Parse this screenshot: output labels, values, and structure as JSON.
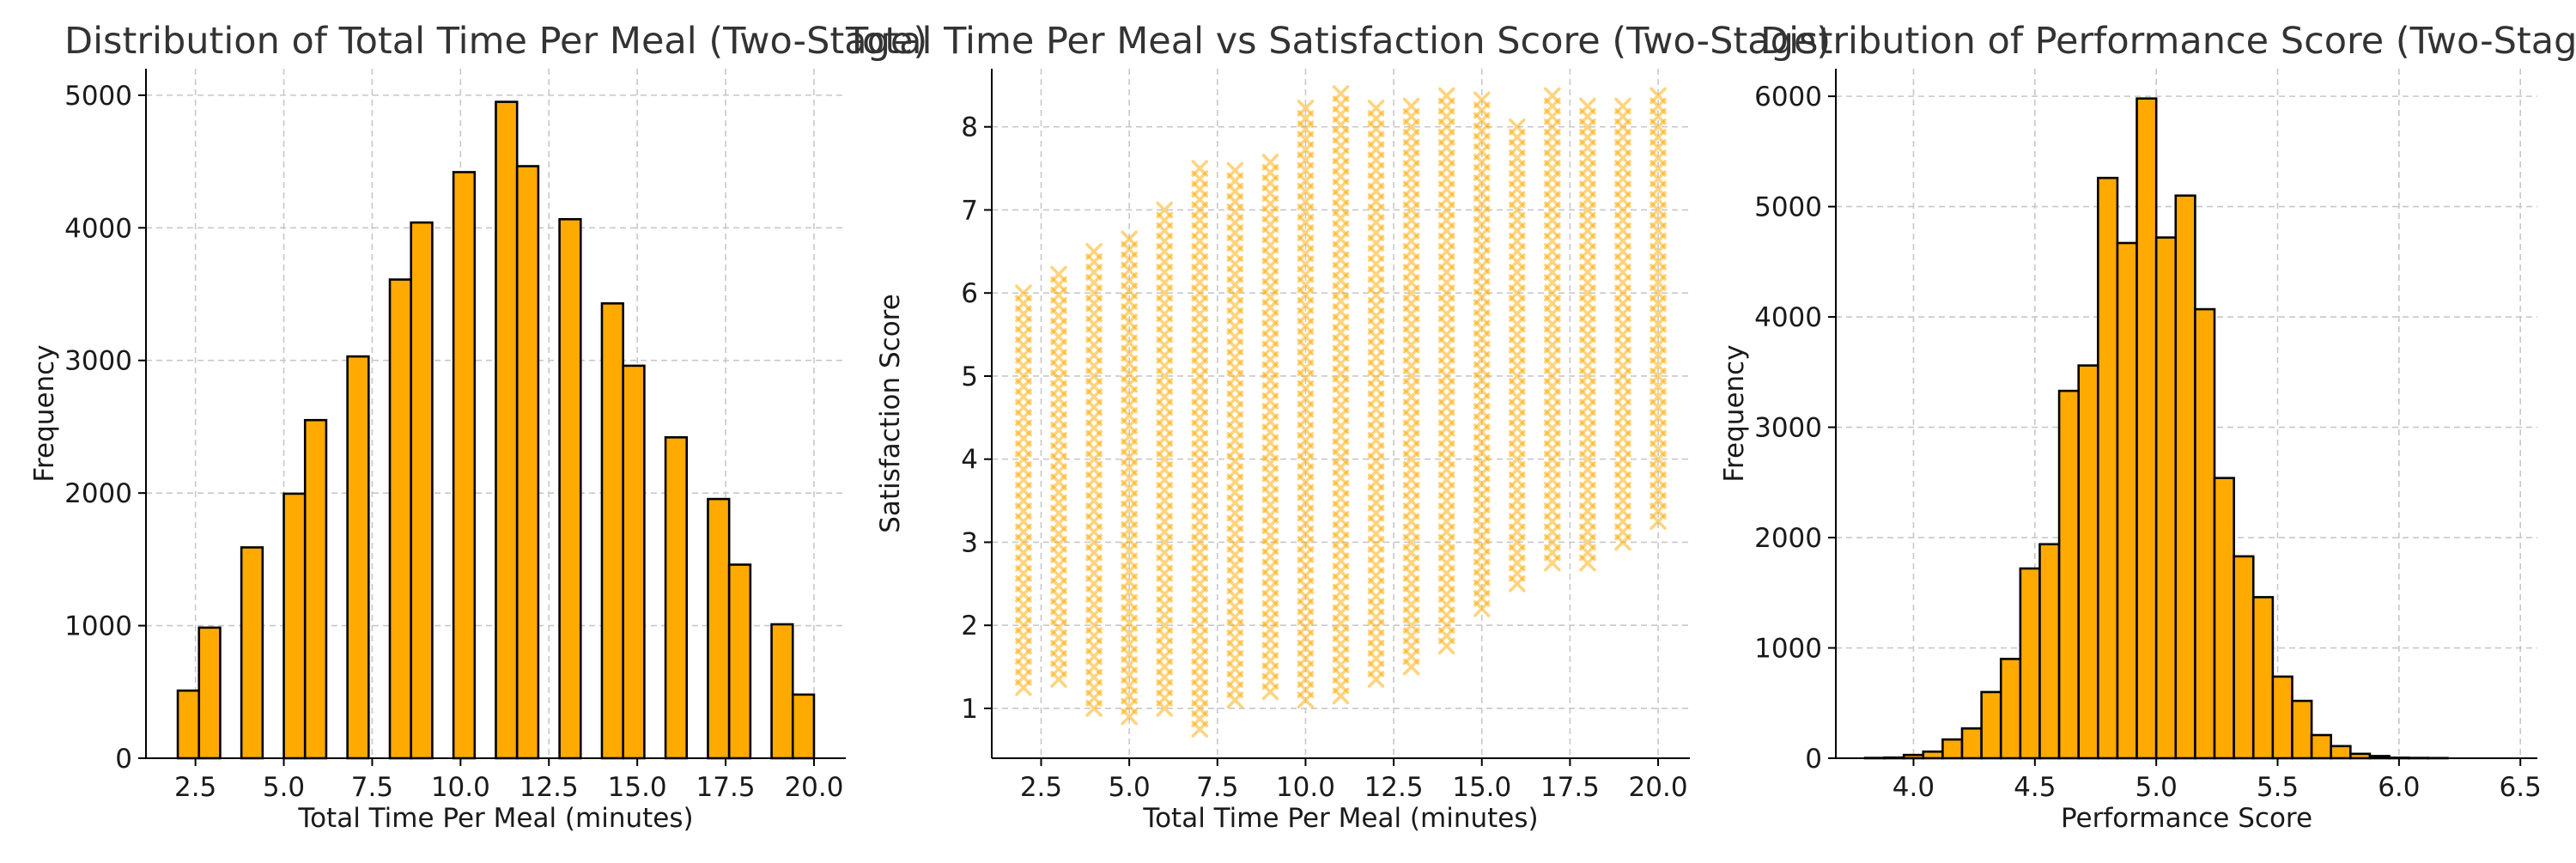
{
  "colors": {
    "bar_fill": "#FFAA00",
    "bar_edge": "#000000",
    "marker": "#FFAA00",
    "grid": "#c8c8c8"
  },
  "chart_data": [
    {
      "type": "bar",
      "title": "Distribution of Total Time Per Meal (Two-Stage)",
      "xlabel": "Total Time Per Meal (minutes)",
      "ylabel": "Frequency",
      "xlim": [
        1.1,
        20.9
      ],
      "ylim": [
        0,
        5200
      ],
      "grid": true,
      "bin_width": 0.6,
      "xticks": [
        2.5,
        5.0,
        7.5,
        10.0,
        12.5,
        15.0,
        17.5,
        20.0
      ],
      "yticks": [
        0,
        1000,
        2000,
        3000,
        4000,
        5000
      ],
      "xtick_labels": [
        "2.5",
        "5.0",
        "7.5",
        "10.0",
        "12.5",
        "15.0",
        "17.5",
        "20.0"
      ],
      "ytick_labels": [
        "0",
        "1000",
        "2000",
        "3000",
        "4000",
        "5000"
      ],
      "bins": [
        {
          "x": 2.0,
          "value": 510
        },
        {
          "x": 2.6,
          "value": 985
        },
        {
          "x": 3.8,
          "value": 1590
        },
        {
          "x": 5.0,
          "value": 1995
        },
        {
          "x": 5.6,
          "value": 2550
        },
        {
          "x": 6.8,
          "value": 3030
        },
        {
          "x": 8.0,
          "value": 3610
        },
        {
          "x": 8.6,
          "value": 4040
        },
        {
          "x": 9.8,
          "value": 4420
        },
        {
          "x": 11.0,
          "value": 4950
        },
        {
          "x": 11.6,
          "value": 4465
        },
        {
          "x": 12.8,
          "value": 4065
        },
        {
          "x": 14.0,
          "value": 3430
        },
        {
          "x": 14.6,
          "value": 2960
        },
        {
          "x": 15.8,
          "value": 2420
        },
        {
          "x": 17.0,
          "value": 1955
        },
        {
          "x": 17.6,
          "value": 1460
        },
        {
          "x": 18.8,
          "value": 1010
        },
        {
          "x": 19.4,
          "value": 480
        }
      ]
    },
    {
      "type": "scatter",
      "title": "Total Time Per Meal vs Satisfaction Score (Two-Stage)",
      "xlabel": "Total Time Per Meal (minutes)",
      "ylabel": "Satisfaction Score",
      "xlim": [
        1.1,
        20.9
      ],
      "ylim": [
        0.4,
        8.7
      ],
      "grid": true,
      "marker": "x",
      "xticks": [
        2.5,
        5.0,
        7.5,
        10.0,
        12.5,
        15.0,
        17.5,
        20.0
      ],
      "yticks": [
        1,
        2,
        3,
        4,
        5,
        6,
        7,
        8
      ],
      "xtick_labels": [
        "2.5",
        "5.0",
        "7.5",
        "10.0",
        "12.5",
        "15.0",
        "17.5",
        "20.0"
      ],
      "ytick_labels": [
        "1",
        "2",
        "3",
        "4",
        "5",
        "6",
        "7",
        "8"
      ],
      "columns": [
        {
          "x": 2,
          "y_min": 1.25,
          "y_max": 6.0
        },
        {
          "x": 3,
          "y_min": 1.35,
          "y_max": 6.25
        },
        {
          "x": 4,
          "y_min": 1.0,
          "y_max": 6.5
        },
        {
          "x": 5,
          "y_min": 0.9,
          "y_max": 6.75
        },
        {
          "x": 6,
          "y_min": 1.0,
          "y_max": 7.0
        },
        {
          "x": 7,
          "y_min": 0.75,
          "y_max": 7.5
        },
        {
          "x": 8,
          "y_min": 1.1,
          "y_max": 7.5
        },
        {
          "x": 9,
          "y_min": 1.2,
          "y_max": 7.6
        },
        {
          "x": 10,
          "y_min": 1.1,
          "y_max": 8.25
        },
        {
          "x": 11,
          "y_min": 1.15,
          "y_max": 8.4
        },
        {
          "x": 12,
          "y_min": 1.35,
          "y_max": 8.25
        },
        {
          "x": 13,
          "y_min": 1.5,
          "y_max": 8.25
        },
        {
          "x": 14,
          "y_min": 1.75,
          "y_max": 8.4
        },
        {
          "x": 15,
          "y_min": 2.2,
          "y_max": 8.4
        },
        {
          "x": 16,
          "y_min": 2.5,
          "y_max": 8.1
        },
        {
          "x": 17,
          "y_min": 2.75,
          "y_max": 8.4
        },
        {
          "x": 18,
          "y_min": 2.75,
          "y_max": 8.25
        },
        {
          "x": 19,
          "y_min": 3.0,
          "y_max": 8.25
        },
        {
          "x": 20,
          "y_min": 3.25,
          "y_max": 8.4
        }
      ]
    },
    {
      "type": "bar",
      "title": "Distribution of Performance Score (Two-Stage)",
      "xlabel": "Performance Score",
      "ylabel": "Frequency",
      "xlim": [
        3.68,
        6.57
      ],
      "ylim": [
        0,
        6250
      ],
      "grid": true,
      "bin_width": 0.08,
      "xticks": [
        4.0,
        4.5,
        5.0,
        5.5,
        6.0,
        6.5
      ],
      "yticks": [
        0,
        1000,
        2000,
        3000,
        4000,
        5000,
        6000
      ],
      "xtick_labels": [
        "4.0",
        "4.5",
        "5.0",
        "5.5",
        "6.0",
        "6.5"
      ],
      "ytick_labels": [
        "0",
        "1000",
        "2000",
        "3000",
        "4000",
        "5000",
        "6000"
      ],
      "bins": [
        {
          "x": 3.8,
          "value": 3
        },
        {
          "x": 3.88,
          "value": 6
        },
        {
          "x": 3.96,
          "value": 30
        },
        {
          "x": 4.04,
          "value": 60
        },
        {
          "x": 4.12,
          "value": 170
        },
        {
          "x": 4.2,
          "value": 270
        },
        {
          "x": 4.28,
          "value": 600
        },
        {
          "x": 4.36,
          "value": 900
        },
        {
          "x": 4.44,
          "value": 1720
        },
        {
          "x": 4.52,
          "value": 1940
        },
        {
          "x": 4.6,
          "value": 3330
        },
        {
          "x": 4.68,
          "value": 3560
        },
        {
          "x": 4.76,
          "value": 5260
        },
        {
          "x": 4.84,
          "value": 4670
        },
        {
          "x": 4.92,
          "value": 5980
        },
        {
          "x": 5.0,
          "value": 4720
        },
        {
          "x": 5.08,
          "value": 5100
        },
        {
          "x": 5.16,
          "value": 4070
        },
        {
          "x": 5.24,
          "value": 2540
        },
        {
          "x": 5.32,
          "value": 1830
        },
        {
          "x": 5.4,
          "value": 1460
        },
        {
          "x": 5.48,
          "value": 740
        },
        {
          "x": 5.56,
          "value": 520
        },
        {
          "x": 5.64,
          "value": 210
        },
        {
          "x": 5.72,
          "value": 110
        },
        {
          "x": 5.8,
          "value": 40
        },
        {
          "x": 5.88,
          "value": 20
        },
        {
          "x": 5.96,
          "value": 5
        },
        {
          "x": 6.04,
          "value": 3
        },
        {
          "x": 6.12,
          "value": 2
        }
      ]
    }
  ]
}
